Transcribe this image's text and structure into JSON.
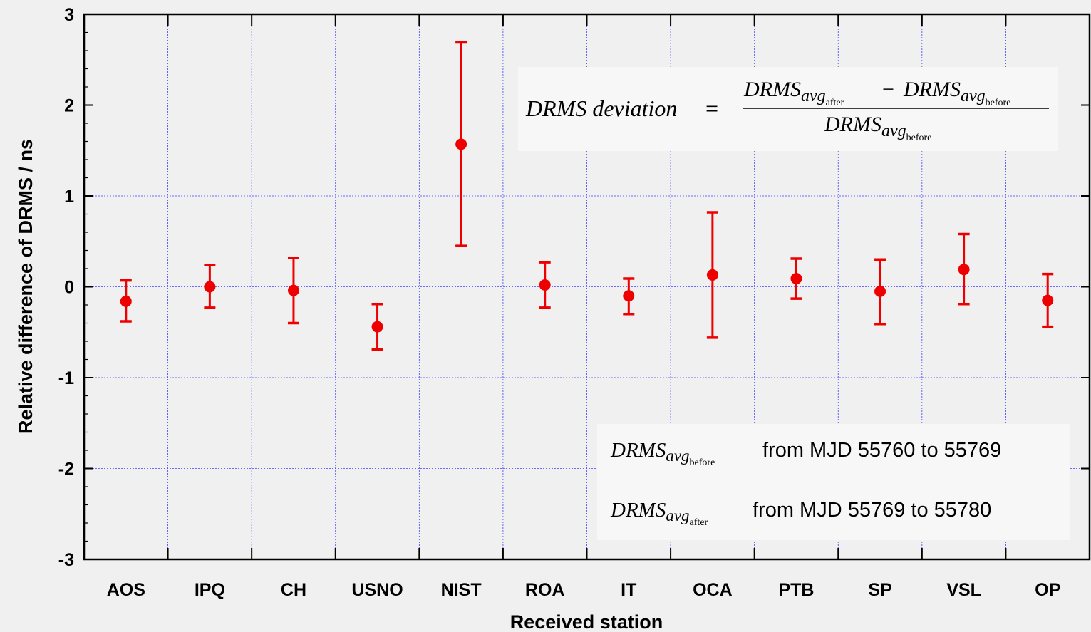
{
  "chart_data": {
    "type": "scatter",
    "error_bars": true,
    "categories": [
      "AOS",
      "IPQ",
      "CH",
      "USNO",
      "NIST",
      "ROA",
      "IT",
      "OCA",
      "PTB",
      "SP",
      "VSL",
      "OP"
    ],
    "values": [
      -0.16,
      0.0,
      -0.04,
      -0.44,
      1.57,
      0.02,
      -0.1,
      0.13,
      0.09,
      -0.05,
      0.19,
      -0.15
    ],
    "error_upper": [
      0.07,
      0.24,
      0.32,
      -0.19,
      2.69,
      0.27,
      0.09,
      0.82,
      0.31,
      0.3,
      0.58,
      0.14
    ],
    "error_lower": [
      -0.38,
      -0.23,
      -0.4,
      -0.69,
      0.45,
      -0.23,
      -0.3,
      -0.56,
      -0.13,
      -0.41,
      -0.19,
      -0.44
    ],
    "xlabel": "Received station",
    "ylabel": "Relative difference of DRMS  / ns",
    "ylim": [
      -3,
      3
    ],
    "yticks": [
      "-3",
      "-2",
      "-1",
      "0",
      "1",
      "2",
      "3"
    ],
    "grid": true,
    "marker_color": "#ee0000"
  },
  "formula": {
    "lhs": "DRMS deviation",
    "equals": "=",
    "num_a": "DRMS",
    "num_a_sub": "avg",
    "num_a_subsub": "after",
    "minus": "−",
    "num_b": "DRMS",
    "num_b_sub": "avg",
    "num_b_subsub": "before",
    "den": "DRMS",
    "den_sub": "avg",
    "den_subsub": "before"
  },
  "legend": {
    "line1_main": "DRMS",
    "line1_sub": "avg",
    "line1_subsub": "before",
    "line1_text": "from MJD 55760 to 55769",
    "line2_main": "DRMS",
    "line2_sub": "avg",
    "line2_subsub": "after",
    "line2_text": "from MJD 55769 to 55780"
  },
  "colors": {
    "background": "#f0f0f0",
    "grid": "#4040ff",
    "box_background": "#f7f7f7"
  }
}
